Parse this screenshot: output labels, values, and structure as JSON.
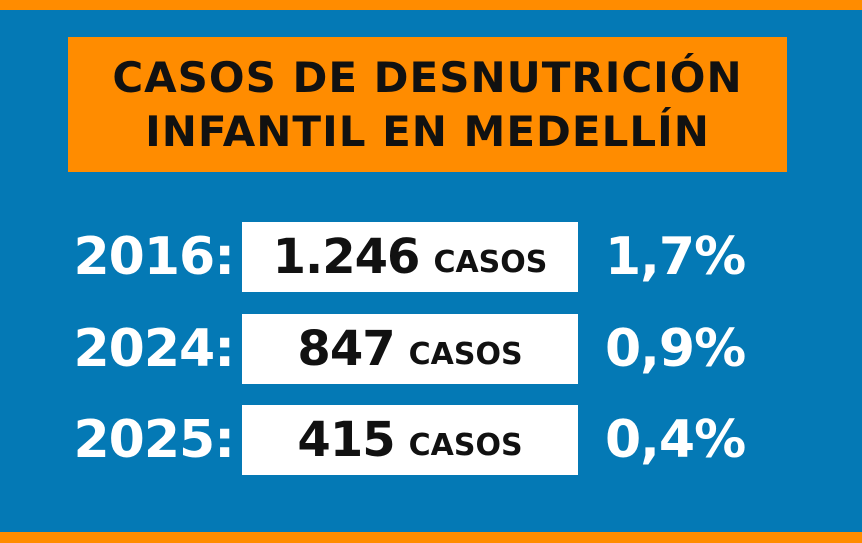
{
  "title": {
    "line1": "CASOS DE DESNUTRICIÓN",
    "line2": "INFANTIL EN MEDELLÍN"
  },
  "rows": [
    {
      "year": "2016:",
      "cases": "1.246",
      "unit": "CASOS",
      "percent": "1,7%"
    },
    {
      "year": "2024:",
      "cases": "847",
      "unit": "CASOS",
      "percent": "0,9%"
    },
    {
      "year": "2025:",
      "cases": "415",
      "unit": "CASOS",
      "percent": "0,4%"
    }
  ],
  "colors": {
    "background": "#0479b5",
    "accent": "#ff8c00"
  }
}
